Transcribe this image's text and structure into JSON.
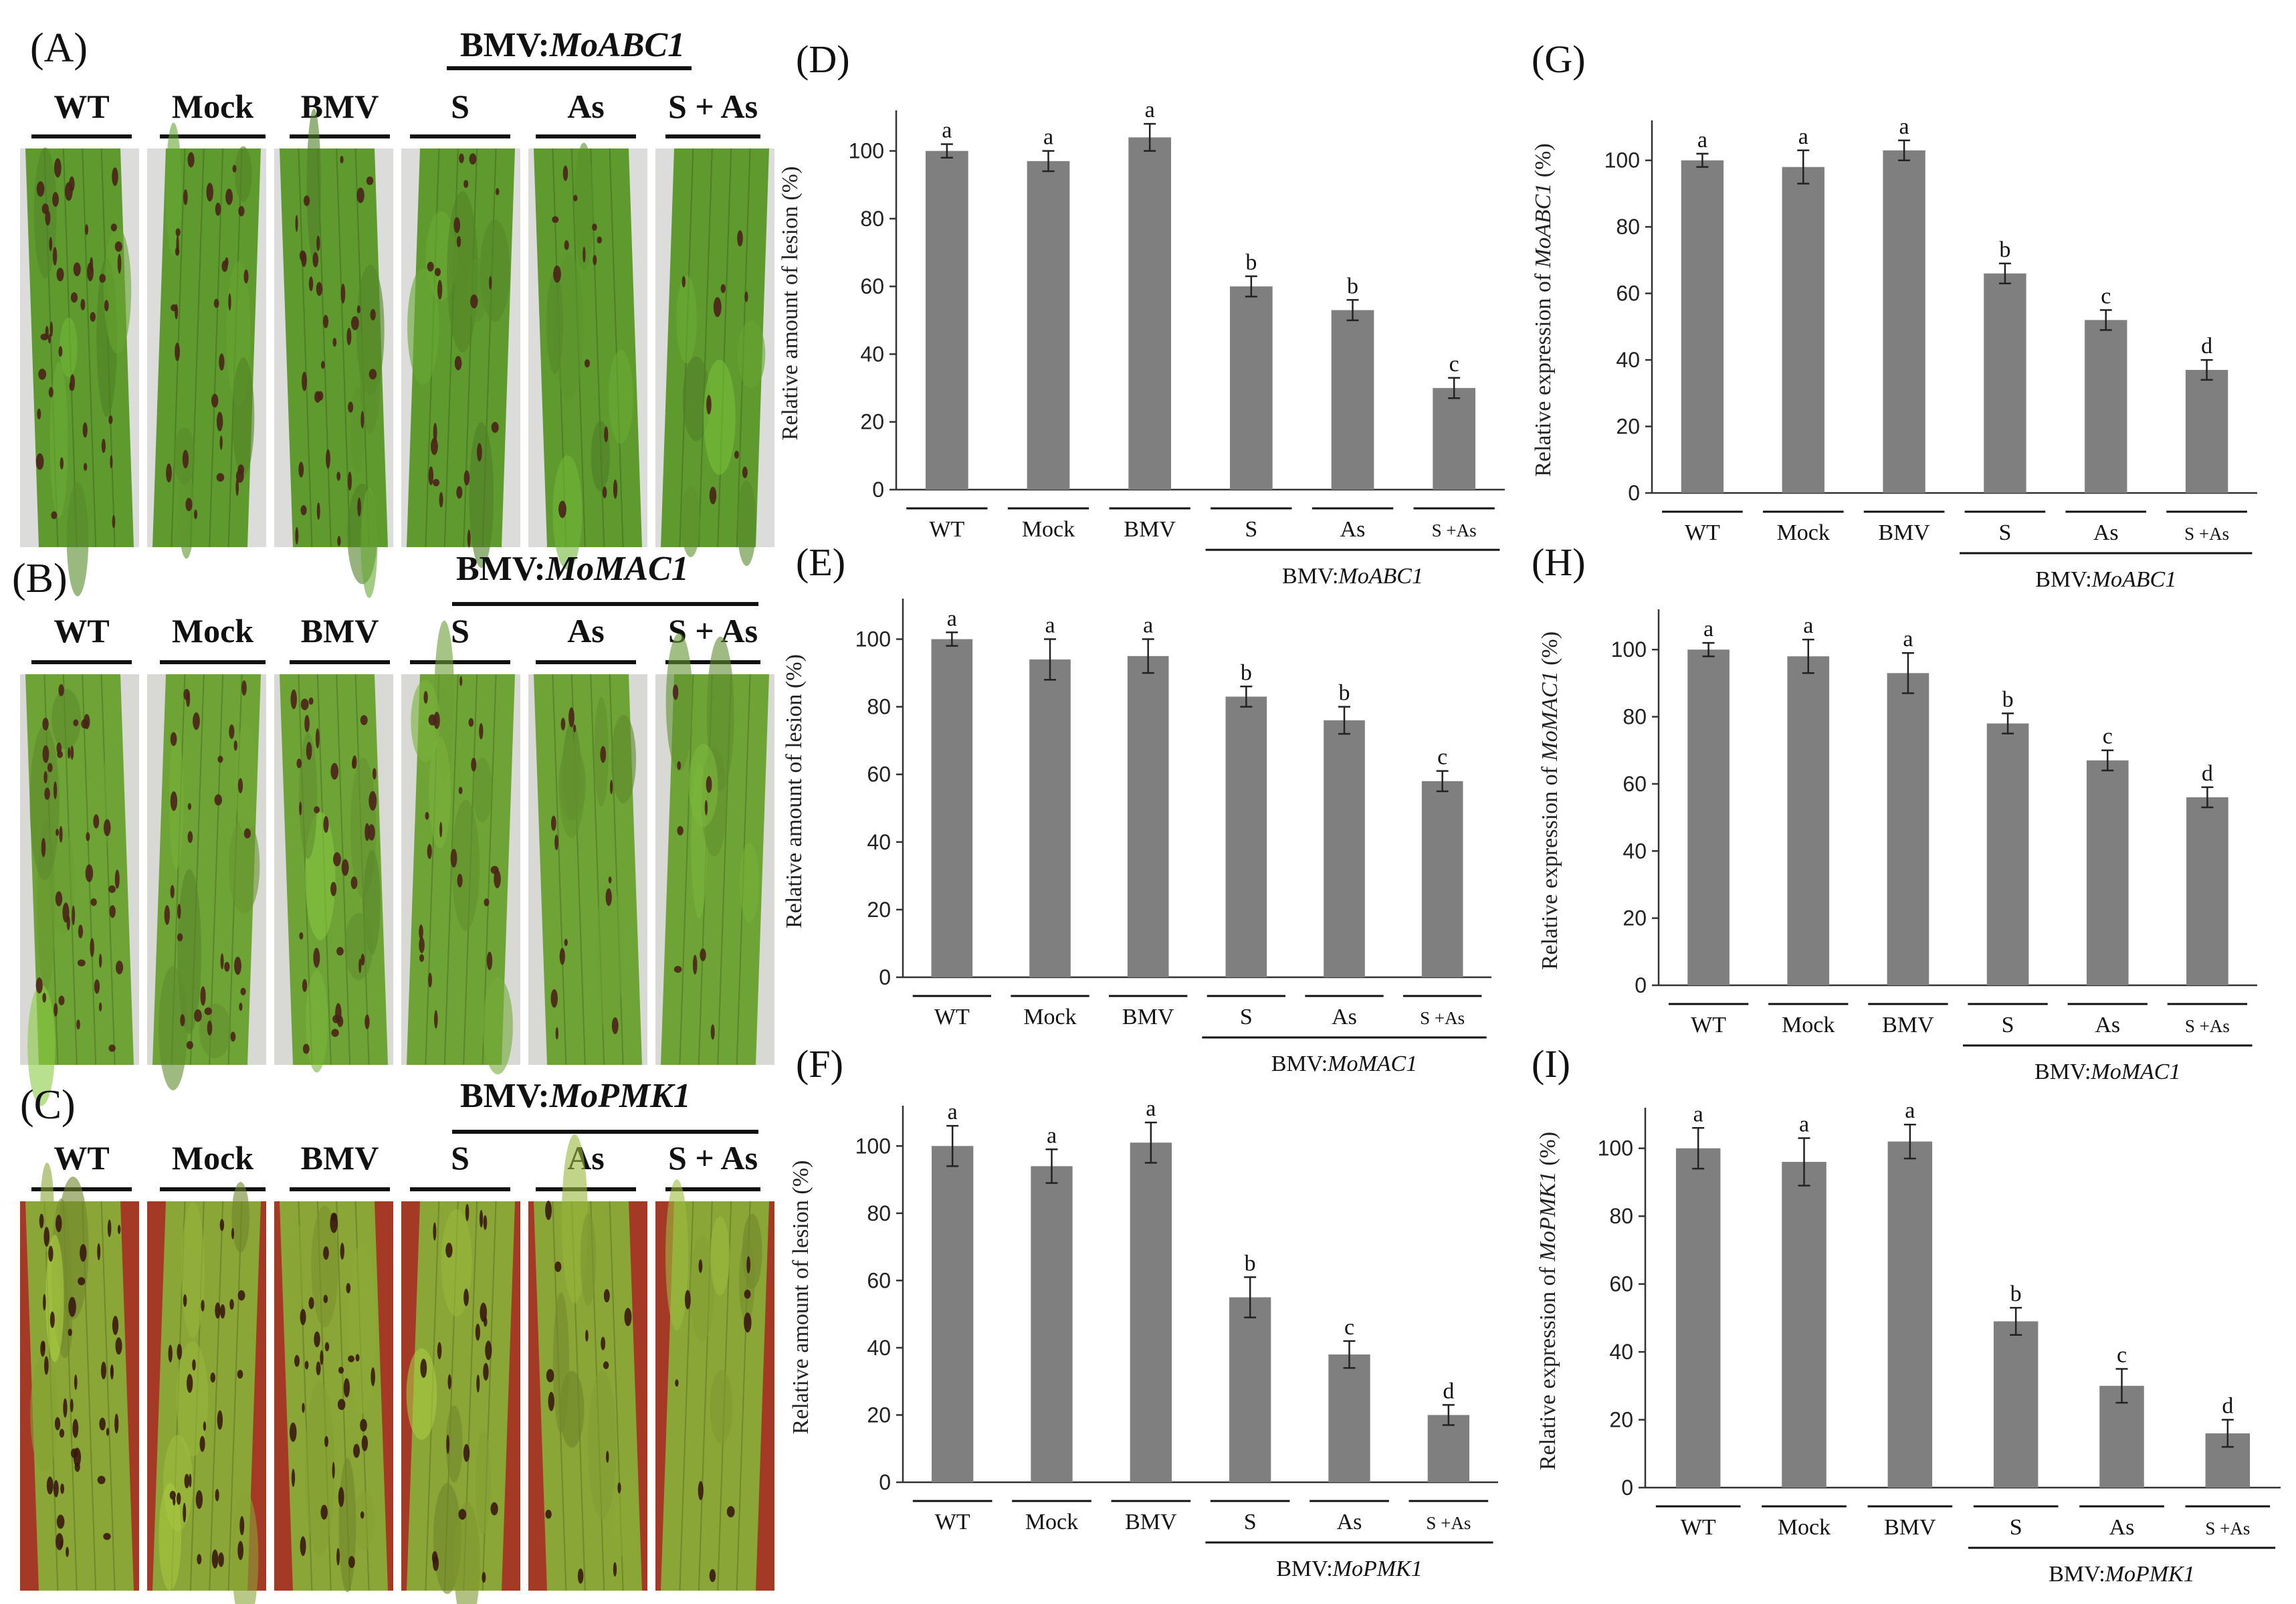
{
  "figure": {
    "photo_panels": [
      {
        "label": "(A)",
        "construct_prefix": "BMV:",
        "construct_gene": "MoABC1",
        "columns": [
          "WT",
          "Mock",
          "BMV",
          "S",
          "As",
          "S + As"
        ],
        "background": "#dcdcda",
        "leaf_color": "#5f9a2e",
        "lesion_color": "#4a2418"
      },
      {
        "label": "(B)",
        "construct_prefix": "BMV:",
        "construct_gene": "MoMAC1",
        "columns": [
          "WT",
          "Mock",
          "BMV",
          "S",
          "As",
          "S + As"
        ],
        "background": "#d8d8d4",
        "leaf_color": "#6ea335",
        "lesion_color": "#4a2418"
      },
      {
        "label": "(C)",
        "construct_prefix": "BMV:",
        "construct_gene": "MoPMK1",
        "columns": [
          "WT",
          "Mock",
          "BMV",
          "S",
          "As",
          "S + As"
        ],
        "background": "#a43a26",
        "leaf_color": "#8aa636",
        "lesion_color": "#3a1a10"
      }
    ],
    "bar_color": "#7f7f7f"
  },
  "chart_data": [
    {
      "panel": "(D)",
      "type": "bar",
      "categories": [
        "WT",
        "Mock",
        "BMV",
        "S",
        "As",
        "S +As"
      ],
      "values": [
        100,
        97,
        104,
        60,
        53,
        30
      ],
      "errors": [
        2,
        3,
        4,
        3,
        3,
        3
      ],
      "letters": [
        "a",
        "a",
        "a",
        "b",
        "b",
        "c"
      ],
      "ylabel": "Relative amount of lesion (%)",
      "ylabel_parts": [
        "Relative amount of lesion (%)"
      ],
      "yticks": [
        0,
        20,
        40,
        60,
        80,
        100
      ],
      "ylim": [
        0,
        110
      ],
      "group_prefix": "BMV:",
      "group_gene": "MoABC1"
    },
    {
      "panel": "(E)",
      "type": "bar",
      "categories": [
        "WT",
        "Mock",
        "BMV",
        "S",
        "As",
        "S +As"
      ],
      "values": [
        100,
        94,
        95,
        83,
        76,
        58
      ],
      "errors": [
        2,
        6,
        5,
        3,
        4,
        3
      ],
      "letters": [
        "a",
        "a",
        "a",
        "b",
        "b",
        "c"
      ],
      "ylabel": "Relative amount of lesion (%)",
      "ylabel_parts": [
        "Relative amount of lesion (%)"
      ],
      "yticks": [
        0,
        20,
        40,
        60,
        80,
        100
      ],
      "ylim": [
        0,
        110
      ],
      "group_prefix": "BMV:",
      "group_gene": "MoMAC1"
    },
    {
      "panel": "(F)",
      "type": "bar",
      "categories": [
        "WT",
        "Mock",
        "BMV",
        "S",
        "As",
        "S +As"
      ],
      "values": [
        100,
        94,
        101,
        55,
        38,
        20
      ],
      "errors": [
        6,
        5,
        6,
        6,
        4,
        3
      ],
      "letters": [
        "a",
        "a",
        "a",
        "b",
        "c",
        "d"
      ],
      "ylabel": "Relative amount of lesion (%)",
      "ylabel_parts": [
        "Relative amount of lesion (%)"
      ],
      "yticks": [
        0,
        20,
        40,
        60,
        80,
        100
      ],
      "ylim": [
        0,
        110
      ],
      "group_prefix": "BMV:",
      "group_gene": "MoPMK1"
    },
    {
      "panel": "(G)",
      "type": "bar",
      "categories": [
        "WT",
        "Mock",
        "BMV",
        "S",
        "As",
        "S +As"
      ],
      "values": [
        100,
        98,
        103,
        66,
        52,
        37
      ],
      "errors": [
        2,
        5,
        3,
        3,
        3,
        3
      ],
      "letters": [
        "a",
        "a",
        "a",
        "b",
        "c",
        "d"
      ],
      "ylabel": "Relative expression of MoABC1 (%)",
      "ylabel_parts": [
        "Relative expression of ",
        "MoABC1",
        " (%)"
      ],
      "yticks": [
        0,
        20,
        40,
        60,
        80,
        100
      ],
      "ylim": [
        0,
        110
      ],
      "group_prefix": "BMV:",
      "group_gene": "MoABC1"
    },
    {
      "panel": "(H)",
      "type": "bar",
      "categories": [
        "WT",
        "Mock",
        "BMV",
        "S",
        "As",
        "S +As"
      ],
      "values": [
        100,
        98,
        93,
        78,
        67,
        56
      ],
      "errors": [
        2,
        5,
        6,
        3,
        3,
        3
      ],
      "letters": [
        "a",
        "a",
        "a",
        "b",
        "c",
        "d"
      ],
      "ylabel": "Relative expression of MoMAC1 (%)",
      "ylabel_parts": [
        "Relative expression of ",
        "MoMAC1",
        " (%)"
      ],
      "yticks": [
        0,
        20,
        40,
        60,
        80,
        100
      ],
      "ylim": [
        0,
        110
      ],
      "group_prefix": "BMV:",
      "group_gene": "MoMAC1"
    },
    {
      "panel": "(I)",
      "type": "bar",
      "categories": [
        "WT",
        "Mock",
        "BMV",
        "S",
        "As",
        "S +As"
      ],
      "values": [
        100,
        96,
        102,
        49,
        30,
        16
      ],
      "errors": [
        6,
        7,
        5,
        4,
        5,
        4
      ],
      "letters": [
        "a",
        "a",
        "a",
        "b",
        "c",
        "d"
      ],
      "ylabel": "Relative expression of MoPMK1 (%)",
      "ylabel_parts": [
        "Relative expression of ",
        "MoPMK1",
        " (%)"
      ],
      "yticks": [
        0,
        20,
        40,
        60,
        80,
        100
      ],
      "ylim": [
        0,
        110
      ],
      "group_prefix": "BMV:",
      "group_gene": "MoPMK1"
    }
  ]
}
